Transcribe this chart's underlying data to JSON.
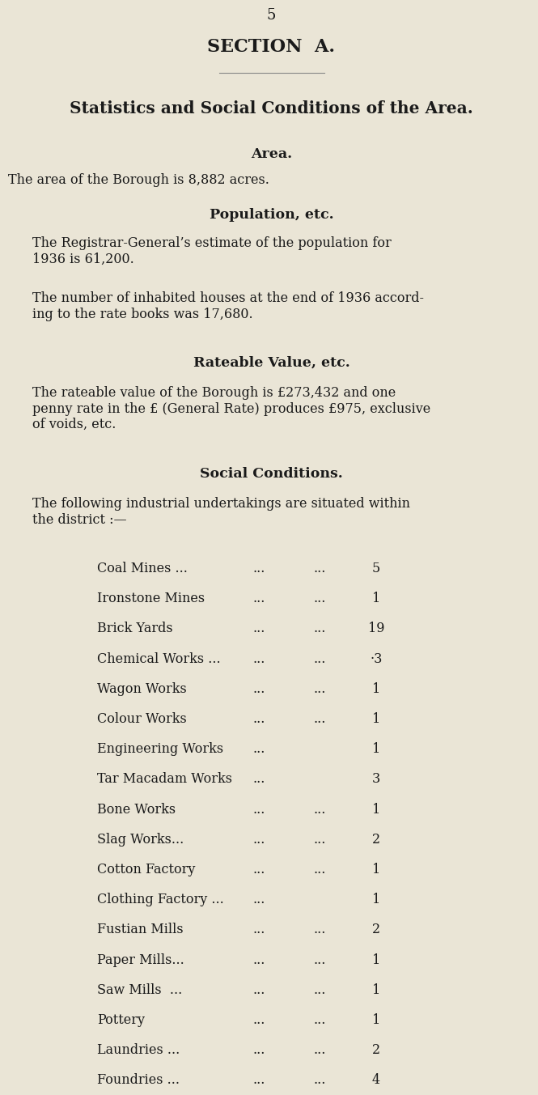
{
  "bg_color": "#EAE5D6",
  "text_color": "#1a1a1a",
  "page_number": "5",
  "section_title": "SECTION  A.",
  "main_title": "Statistics and Social Conditions of the Area.",
  "area_heading": "Area.",
  "area_text": "The area of the Borough is 8,882 acres.",
  "pop_heading": "Population, etc.",
  "pop_text1": "The Registrar-General’s estimate of the population for\n1936 is 61,200.",
  "pop_text2": "The number of inhabited houses at the end of 1936 accord-\ning to the rate books was 17,680.",
  "rate_heading": "Rateable Value, etc.",
  "rate_text": "The rateable value of the Borough is £273,432 and one\npenny rate in the £ (General Rate) produces £975, exclusive\nof voids, etc.",
  "social_heading": "Social Conditions.",
  "social_intro": "The following industrial undertakings are situated within\nthe district :—",
  "industries": [
    [
      "Coal Mines ...",
      "...",
      "...",
      "5"
    ],
    [
      "Ironstone Mines",
      "...",
      "...",
      "1"
    ],
    [
      "Brick Yards",
      "...",
      "...",
      "19"
    ],
    [
      "Chemical Works ...",
      "...",
      "...",
      "·3"
    ],
    [
      "Wagon Works",
      "...",
      "...",
      "1"
    ],
    [
      "Colour Works",
      "...",
      "...",
      "1"
    ],
    [
      "Engineering Works",
      "...",
      "",
      "1"
    ],
    [
      "Tar Macadam Works",
      "...",
      "",
      "3"
    ],
    [
      "Bone Works",
      "...",
      "...",
      "1"
    ],
    [
      "Slag Works...",
      "...",
      "...",
      "2"
    ],
    [
      "Cotton Factory",
      "...",
      "...",
      "1"
    ],
    [
      "Clothing Factory ...",
      "...",
      "",
      "1"
    ],
    [
      "Fustian Mills",
      "...",
      "...",
      "2"
    ],
    [
      "Paper Mills...",
      "...",
      "...",
      "1"
    ],
    [
      "Saw Mills  ...",
      "...",
      "...",
      "1"
    ],
    [
      "Pottery",
      "...",
      "...",
      "1"
    ],
    [
      "Laundries ...",
      "...",
      "...",
      "2"
    ],
    [
      "Foundries ...",
      "...",
      "...",
      "4"
    ]
  ]
}
